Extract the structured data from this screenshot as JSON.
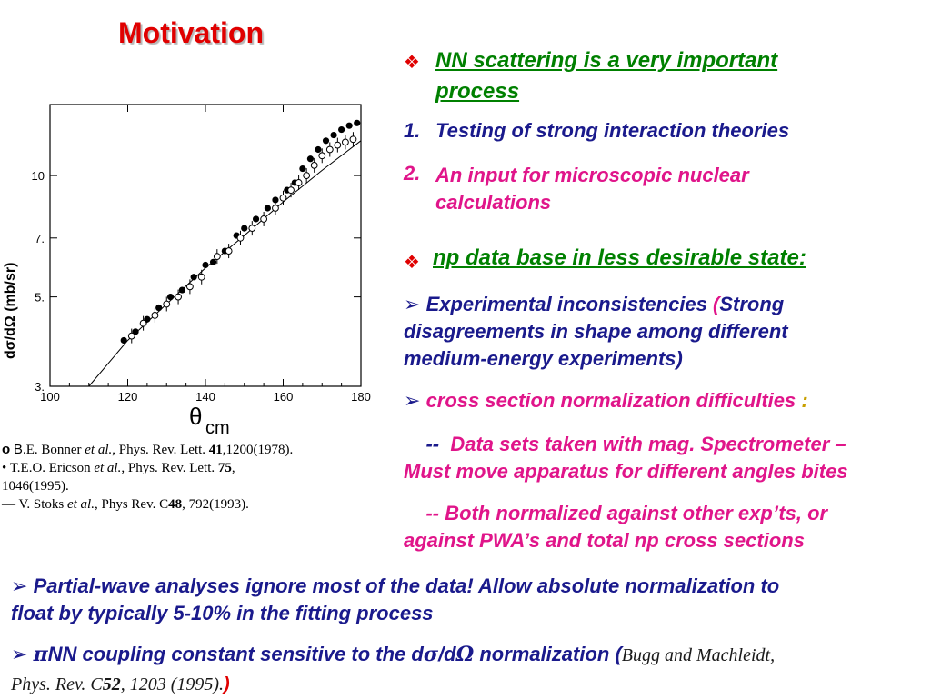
{
  "title": "Motivation",
  "bullet1": {
    "heading": "NN scattering is a very important process",
    "heading_line1": "NN scattering is a very important",
    "heading_line2": "process",
    "items": [
      {
        "num": "1.",
        "text": "Testing of strong interaction theories"
      },
      {
        "num": "2.",
        "text": "An input for microscopic nuclear",
        "text2": "calculations"
      }
    ]
  },
  "bullet2": {
    "heading": "np data base in less desirable state:",
    "sub1_a": "Experimental inconsistencies ",
    "sub1_paren": "(",
    "sub1_b": "Strong",
    "sub1_line2": "disagreements in shape among different",
    "sub1_line3": "medium-energy experiments)",
    "sub2": "cross section normalization difficulties ",
    "sub2_colon": ":",
    "dash": "--",
    "sub3_a": "Data sets taken with mag. Spectrometer –",
    "sub3_b": "Must move apparatus for different angles bites",
    "sub4_a": "--  Both normalized against other exp’ts, or",
    "sub4_b": "against PWA’s and total np cross sections"
  },
  "bottom": {
    "line1_a": "Partial-wave analyses ignore most of the data!  Allow  absolute normalization to",
    "line1_b": "float by typically  5-10% in the fitting process",
    "line2_pi": "π",
    "line2_a": "NN coupling constant sensitive to the d",
    "line2_sigma": "σ",
    "line2_slash": "/d",
    "line2_omega": "Ω",
    "line2_b": " normalization (",
    "ref_a": "Bugg and Machleidt,",
    "ref_b": "Phys. Rev. C",
    "ref_vol": "52",
    "ref_c": ", 1203 (1995).",
    "close": ")"
  },
  "references": {
    "r1_sym": "o",
    "r1_b": "B",
    "r1_text": ".E. Bonner ",
    "r1_etal": "et al.",
    "r1_j": ", Phys. Rev. Lett. ",
    "r1_vol": "41",
    "r1_rest": ",1200(1978).",
    "r2_sym": "•",
    "r2_text": " T.E.O. Ericson ",
    "r2_etal": "et al.",
    "r2_j": ", Phys. Rev. Lett.  ",
    "r2_vol": "75",
    "r2_rest": ",",
    "r2_line2": "1046(1995).",
    "r3_sym": "—",
    "r3_text": " V. Stoks ",
    "r3_etal": "et al.",
    "r3_j": ", Phys Rev. C",
    "r3_vol": "48",
    "r3_rest": ", 792(1993)."
  },
  "colors": {
    "title": "#e00000",
    "heading": "#008000",
    "navy": "#1a1a8c",
    "pink": "#e0158a"
  },
  "chart_data": {
    "type": "scatter",
    "xlabel": "θcm",
    "xlabel_main": "θ",
    "xlabel_sub": "cm",
    "ylabel": "dσ/dΩ (mb/sr)",
    "xlim": [
      100,
      180
    ],
    "ylim": [
      3,
      15
    ],
    "y_scale": "log",
    "x_ticks": [
      "100",
      "120",
      "140",
      "160",
      "180"
    ],
    "y_ticks": [
      {
        "v": 3,
        "label": "3."
      },
      {
        "v": 5,
        "label": "5."
      },
      {
        "v": 7,
        "label": "7."
      },
      {
        "v": 10,
        "label": "10"
      }
    ],
    "series": [
      {
        "marker": "filled-circle",
        "x": [
          119,
          122,
          125,
          128,
          131,
          134,
          137,
          140,
          142,
          145,
          148,
          150,
          153,
          156,
          158,
          161,
          163,
          165,
          167,
          169,
          171,
          173,
          175,
          177,
          179
        ],
        "y": [
          3.9,
          4.1,
          4.4,
          4.7,
          5.0,
          5.2,
          5.6,
          6.0,
          6.1,
          6.5,
          7.1,
          7.4,
          7.8,
          8.3,
          8.7,
          9.2,
          9.6,
          10.4,
          11.0,
          11.6,
          12.2,
          12.6,
          13.0,
          13.3,
          13.5
        ]
      },
      {
        "marker": "open-circle",
        "x": [
          121,
          124,
          127,
          130,
          133,
          136,
          139,
          143,
          146,
          149,
          152,
          155,
          158,
          160,
          162,
          164,
          166,
          168,
          170,
          172,
          174,
          176,
          178
        ],
        "y": [
          4.0,
          4.3,
          4.5,
          4.8,
          5.0,
          5.3,
          5.6,
          6.3,
          6.5,
          7.0,
          7.4,
          7.8,
          8.3,
          8.8,
          9.2,
          9.6,
          10.0,
          10.6,
          11.2,
          11.6,
          11.9,
          12.1,
          12.3
        ]
      }
    ],
    "curve": {
      "x": [
        110,
        120,
        130,
        140,
        150,
        160,
        170,
        180
      ],
      "y": [
        3.0,
        3.9,
        4.8,
        5.9,
        7.1,
        8.6,
        10.3,
        12.2
      ]
    }
  }
}
